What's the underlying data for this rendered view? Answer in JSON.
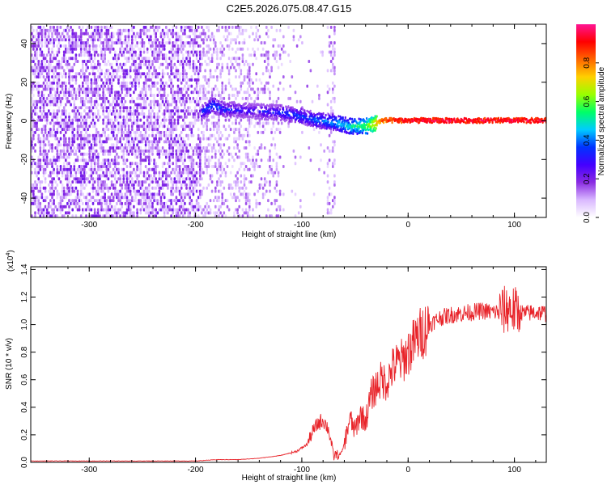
{
  "title": "C2E5.2026.075.08.47.G15",
  "chart_data": [
    {
      "type": "heatmap",
      "xlabel": "Height of straight line (km)",
      "ylabel": "Frequency (Hz)",
      "xlim": [
        -355,
        130
      ],
      "ylim": [
        -50,
        50
      ],
      "x_ticks": [
        "-300",
        "-200",
        "-100",
        "0",
        "100"
      ],
      "y_ticks": [
        "-40",
        "-20",
        "0",
        "20",
        "40"
      ],
      "grid": false,
      "colorbar": {
        "label": "Normalized spectral amplitude",
        "range": [
          0.0,
          1.0
        ],
        "ticks": [
          "0.0",
          "0.2",
          "0.4",
          "0.6",
          "0.8"
        ],
        "colormap": [
          "#ffffff",
          "#d9b8ff",
          "#8a2be2",
          "#4400ff",
          "#0033ff",
          "#00ccff",
          "#00ff66",
          "#99ff00",
          "#ffd000",
          "#ff6600",
          "#ff0000",
          "#ff1493"
        ]
      },
      "features": {
        "broadband_noise_region_x": [
          -355,
          -195
        ],
        "sparse_noise_region_x": [
          -195,
          -120
        ],
        "spike_region_x": [
          -78,
          -70
        ],
        "carrier_line": {
          "x": [
            -195,
            -185,
            -175,
            -150,
            -120,
            -100,
            -85,
            -70,
            -55,
            -40,
            -25,
            0,
            50,
            100,
            130
          ],
          "freq": [
            4,
            8,
            6,
            5,
            4,
            2,
            0,
            -1,
            -3,
            -3,
            0,
            0,
            0,
            0,
            0
          ],
          "amplitude": [
            0.35,
            0.4,
            0.35,
            0.3,
            0.35,
            0.38,
            0.4,
            0.45,
            0.5,
            0.6,
            0.85,
            0.95,
            0.95,
            0.95,
            0.95
          ]
        }
      }
    },
    {
      "type": "line",
      "xlabel": "Height of straight line (km)",
      "ylabel": "SNR (10 * v/v)",
      "scale_label_base": "(x10",
      "scale_label_exp": "4",
      "scale_label_end": ")",
      "xlim": [
        -355,
        130
      ],
      "ylim": [
        0,
        1.42
      ],
      "x_ticks": [
        "-300",
        "-200",
        "-100",
        "0",
        "100"
      ],
      "y_ticks": [
        "0.0",
        "0.2",
        "0.4",
        "0.6",
        "0.8",
        "1.0",
        "1.2",
        "1.4"
      ],
      "grid": false,
      "series": [
        {
          "color": "#e8242a",
          "x": [
            -355,
            -300,
            -250,
            -200,
            -180,
            -160,
            -140,
            -120,
            -105,
            -95,
            -90,
            -85,
            -80,
            -75,
            -72,
            -70,
            -68,
            -65,
            -62,
            -58,
            -55,
            -50,
            -45,
            -40,
            -35,
            -30,
            -25,
            -20,
            -15,
            -10,
            -5,
            0,
            10,
            20,
            30,
            40,
            50,
            60,
            70,
            80,
            90,
            95,
            100,
            105,
            110,
            120,
            130
          ],
          "y": [
            0.01,
            0.01,
            0.01,
            0.01,
            0.02,
            0.02,
            0.03,
            0.05,
            0.08,
            0.13,
            0.22,
            0.28,
            0.31,
            0.24,
            0.13,
            0.04,
            0.06,
            0.05,
            0.08,
            0.2,
            0.32,
            0.23,
            0.35,
            0.3,
            0.48,
            0.55,
            0.6,
            0.58,
            0.68,
            0.72,
            0.74,
            0.8,
            0.92,
            1.0,
            1.05,
            1.07,
            1.08,
            1.09,
            1.1,
            1.09,
            1.1,
            1.12,
            1.1,
            1.09,
            1.08,
            1.09,
            1.08
          ]
        }
      ]
    }
  ]
}
